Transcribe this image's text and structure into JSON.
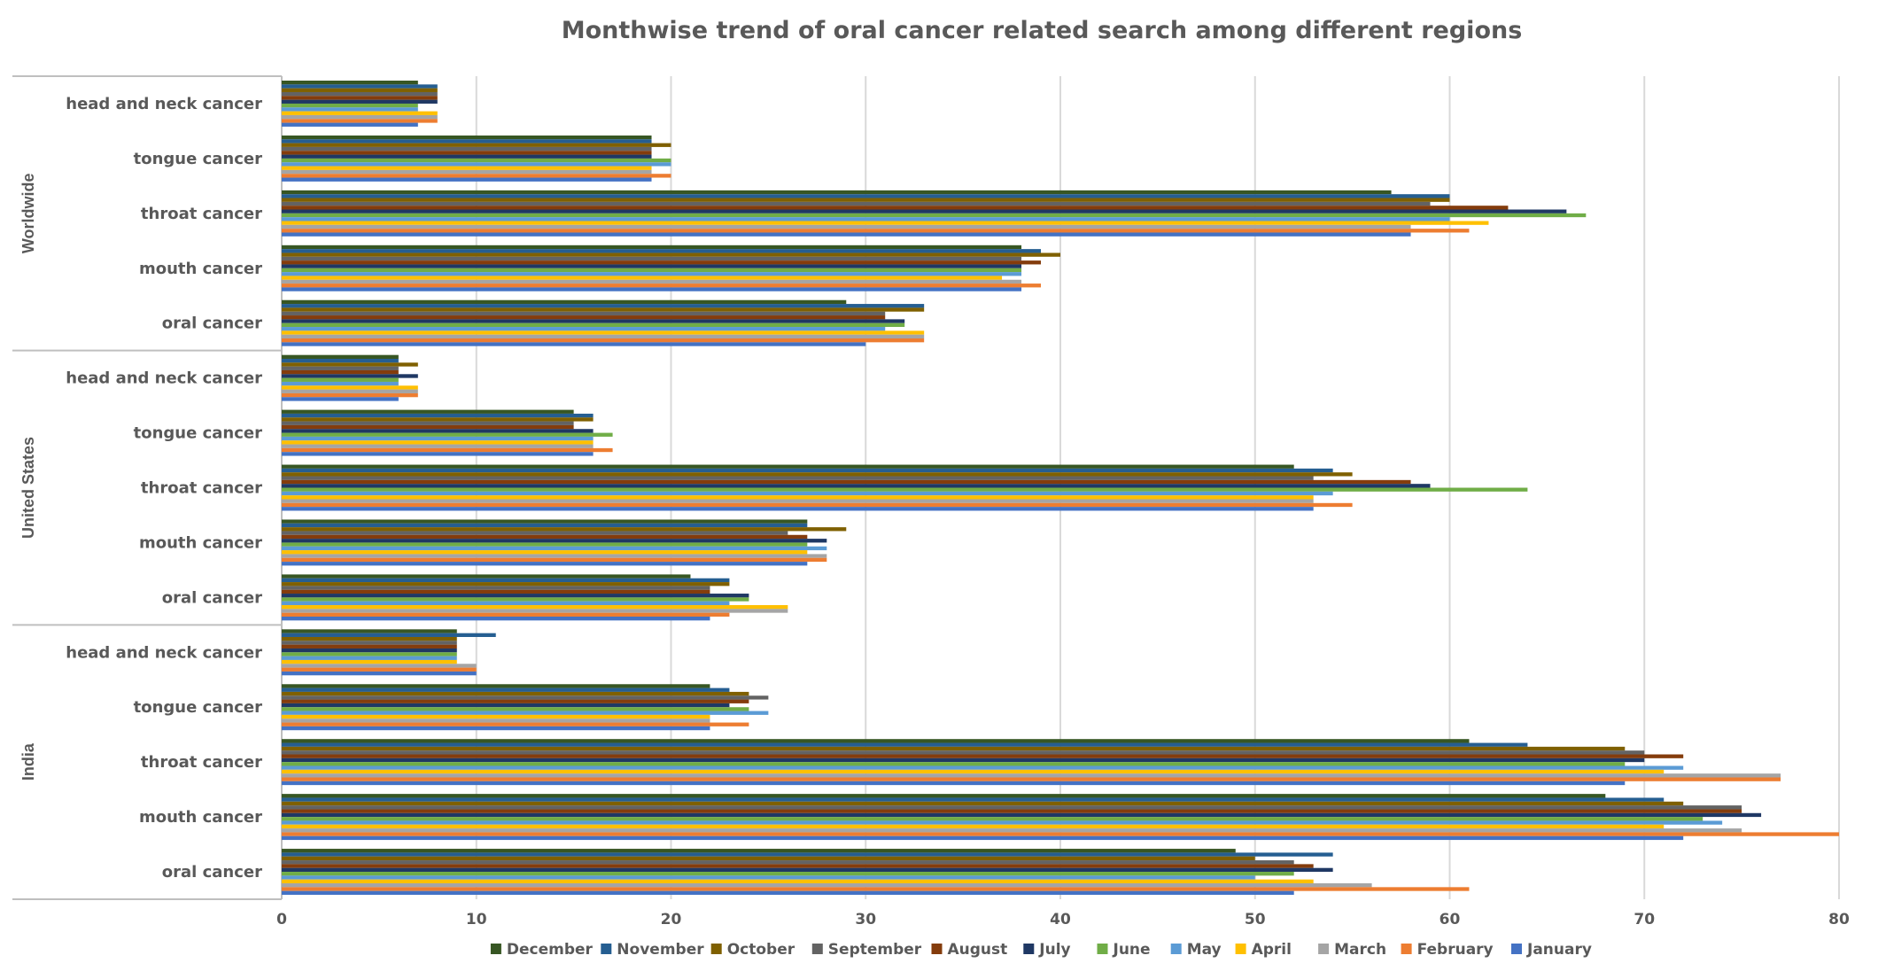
{
  "chart_data": {
    "type": "bar",
    "orientation": "horizontal",
    "title": "Monthwise trend of oral cancer related search among different regions",
    "xlabel": "",
    "ylabel": "",
    "xlim": [
      0,
      80
    ],
    "x_ticks": [
      "0",
      "10",
      "20",
      "30",
      "40",
      "50",
      "60",
      "70",
      "80"
    ],
    "grid": "vertical",
    "legend_position": "bottom",
    "categories": [
      "head and neck cancer",
      "tongue cancer",
      "throat cancer",
      "mouth cancer",
      "oral cancer"
    ],
    "series_order_top_to_bottom": [
      "December",
      "November",
      "October",
      "September",
      "August",
      "July",
      "June",
      "May",
      "April",
      "March",
      "February",
      "January"
    ],
    "colors": {
      "December": "#375623",
      "November": "#255e91",
      "October": "#7f6000",
      "September": "#636363",
      "August": "#843c0c",
      "July": "#1f3864",
      "June": "#70ad47",
      "May": "#5b9bd5",
      "April": "#ffc000",
      "March": "#a5a5a5",
      "February": "#ed7d31",
      "January": "#4472c4"
    },
    "legend": [
      "December",
      "November",
      "October",
      "September",
      "August",
      "July",
      "June",
      "May",
      "April",
      "March",
      "February",
      "January"
    ],
    "groups": [
      {
        "region": "Worldwide",
        "values": {
          "head and neck cancer": {
            "December": 7,
            "November": 8,
            "October": 8,
            "September": 8,
            "August": 8,
            "July": 8,
            "June": 7,
            "May": 7,
            "April": 8,
            "March": 8,
            "February": 8,
            "January": 7
          },
          "tongue cancer": {
            "December": 19,
            "November": 19,
            "October": 20,
            "September": 19,
            "August": 19,
            "July": 19,
            "June": 20,
            "May": 20,
            "April": 19,
            "March": 19,
            "February": 20,
            "January": 19
          },
          "throat cancer": {
            "December": 57,
            "November": 60,
            "October": 60,
            "September": 59,
            "August": 63,
            "July": 66,
            "June": 67,
            "May": 60,
            "April": 62,
            "March": 58,
            "February": 61,
            "January": 58
          },
          "mouth cancer": {
            "December": 38,
            "November": 39,
            "October": 40,
            "September": 38,
            "August": 39,
            "July": 38,
            "June": 38,
            "May": 38,
            "April": 37,
            "March": 38,
            "February": 39,
            "January": 38
          },
          "oral cancer": {
            "December": 29,
            "November": 33,
            "October": 33,
            "September": 31,
            "August": 31,
            "July": 32,
            "June": 32,
            "May": 31,
            "April": 33,
            "March": 33,
            "February": 33,
            "January": 30
          }
        }
      },
      {
        "region": "United States",
        "values": {
          "head and neck cancer": {
            "December": 6,
            "November": 6,
            "October": 7,
            "September": 6,
            "August": 6,
            "July": 7,
            "June": 6,
            "May": 6,
            "April": 7,
            "March": 7,
            "February": 7,
            "January": 6
          },
          "tongue cancer": {
            "December": 15,
            "November": 16,
            "October": 16,
            "September": 15,
            "August": 15,
            "July": 16,
            "June": 17,
            "May": 16,
            "April": 16,
            "March": 16,
            "February": 17,
            "January": 16
          },
          "throat cancer": {
            "December": 52,
            "November": 54,
            "October": 55,
            "September": 53,
            "August": 58,
            "July": 59,
            "June": 64,
            "May": 54,
            "April": 53,
            "March": 53,
            "February": 55,
            "January": 53
          },
          "mouth cancer": {
            "December": 27,
            "November": 27,
            "October": 29,
            "September": 26,
            "August": 27,
            "July": 28,
            "June": 27,
            "May": 28,
            "April": 27,
            "March": 28,
            "February": 28,
            "January": 27
          },
          "oral cancer": {
            "December": 21,
            "November": 23,
            "October": 23,
            "September": 22,
            "August": 22,
            "July": 24,
            "June": 24,
            "May": 23,
            "April": 26,
            "March": 26,
            "February": 23,
            "January": 22
          }
        }
      },
      {
        "region": "India",
        "values": {
          "head and neck cancer": {
            "December": 9,
            "November": 11,
            "October": 9,
            "September": 9,
            "August": 9,
            "July": 9,
            "June": 9,
            "May": 9,
            "April": 9,
            "March": 10,
            "February": 10,
            "January": 10
          },
          "tongue cancer": {
            "December": 22,
            "November": 23,
            "October": 24,
            "September": 25,
            "August": 24,
            "July": 23,
            "June": 24,
            "May": 25,
            "April": 22,
            "March": 22,
            "February": 24,
            "January": 22
          },
          "throat cancer": {
            "December": 61,
            "November": 64,
            "October": 69,
            "September": 70,
            "August": 72,
            "July": 70,
            "June": 69,
            "May": 72,
            "April": 71,
            "March": 77,
            "February": 77,
            "January": 69
          },
          "mouth cancer": {
            "December": 68,
            "November": 71,
            "October": 72,
            "September": 75,
            "August": 75,
            "July": 76,
            "June": 73,
            "May": 74,
            "April": 71,
            "March": 75,
            "February": 80,
            "January": 72
          },
          "oral cancer": {
            "December": 49,
            "November": 54,
            "October": 50,
            "September": 52,
            "August": 53,
            "July": 54,
            "June": 52,
            "May": 50,
            "April": 53,
            "March": 56,
            "February": 61,
            "January": 52
          }
        }
      }
    ]
  }
}
